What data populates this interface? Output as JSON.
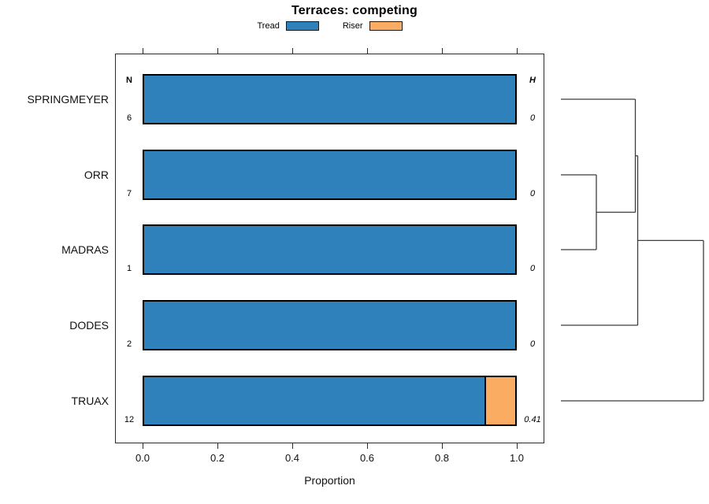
{
  "chart_data": {
    "type": "bar",
    "orientation": "horizontal-stacked",
    "title": "Terraces: competing",
    "xlabel": "Proportion",
    "xlim": [
      0.0,
      1.0
    ],
    "x_ticks": [
      "0.0",
      "0.2",
      "0.4",
      "0.6",
      "0.8",
      "1.0"
    ],
    "x_tick_values": [
      0.0,
      0.2,
      0.4,
      0.6,
      0.8,
      1.0
    ],
    "grid": false,
    "legend": {
      "position": "top",
      "entries": [
        {
          "label": "Tread",
          "color": "#2E81BA"
        },
        {
          "label": "Riser",
          "color": "#FBAC63"
        }
      ]
    },
    "columns": {
      "n_header": "N",
      "h_header": "H"
    },
    "series_names": [
      "Tread",
      "Riser"
    ],
    "series_colors": [
      "#2E81BA",
      "#FBAC63"
    ],
    "rows": [
      {
        "label": "SPRINGMEYER",
        "n": "6",
        "h": "0",
        "values": [
          1.0,
          0.0
        ]
      },
      {
        "label": "ORR",
        "n": "7",
        "h": "0",
        "values": [
          1.0,
          0.0
        ]
      },
      {
        "label": "MADRAS",
        "n": "1",
        "h": "0",
        "values": [
          1.0,
          0.0
        ]
      },
      {
        "label": "DODES",
        "n": "2",
        "h": "0",
        "values": [
          1.0,
          0.0
        ]
      },
      {
        "label": "TRUAX",
        "n": "12",
        "h": "0.41",
        "values": [
          0.9167,
          0.0833
        ]
      }
    ],
    "bar_border_color": "#000000",
    "dendrogram": {
      "line_color": "#3c3c3c",
      "merges_order": [
        [
          "ORR",
          "MADRAS"
        ],
        [
          "SPRINGMEYER",
          "(ORR,MADRAS)"
        ],
        [
          "(SPRINGMEYER,ORR,MADRAS)",
          "DODES"
        ],
        [
          "(SPRINGMEYER,ORR,MADRAS,DODES)",
          "TRUAX"
        ]
      ],
      "segments": [
        {
          "x1": 712,
          "y1": 126,
          "x2": 806.5,
          "y2": 126
        },
        {
          "x1": 712,
          "y1": 222,
          "x2": 757,
          "y2": 222
        },
        {
          "x1": 712,
          "y1": 317,
          "x2": 757,
          "y2": 317
        },
        {
          "x1": 757,
          "y1": 222,
          "x2": 757,
          "y2": 317
        },
        {
          "x1": 757,
          "y1": 269.5,
          "x2": 806.5,
          "y2": 269.5
        },
        {
          "x1": 806.5,
          "y1": 126,
          "x2": 806.5,
          "y2": 269.5
        },
        {
          "x1": 806.5,
          "y1": 197.8,
          "x2": 809.5,
          "y2": 197.8
        },
        {
          "x1": 712,
          "y1": 413,
          "x2": 809.5,
          "y2": 413
        },
        {
          "x1": 809.5,
          "y1": 197.8,
          "x2": 809.5,
          "y2": 413
        },
        {
          "x1": 809.5,
          "y1": 305.4,
          "x2": 893,
          "y2": 305.4
        },
        {
          "x1": 712,
          "y1": 509,
          "x2": 893,
          "y2": 509
        },
        {
          "x1": 893,
          "y1": 305.4,
          "x2": 893,
          "y2": 509
        }
      ]
    }
  }
}
